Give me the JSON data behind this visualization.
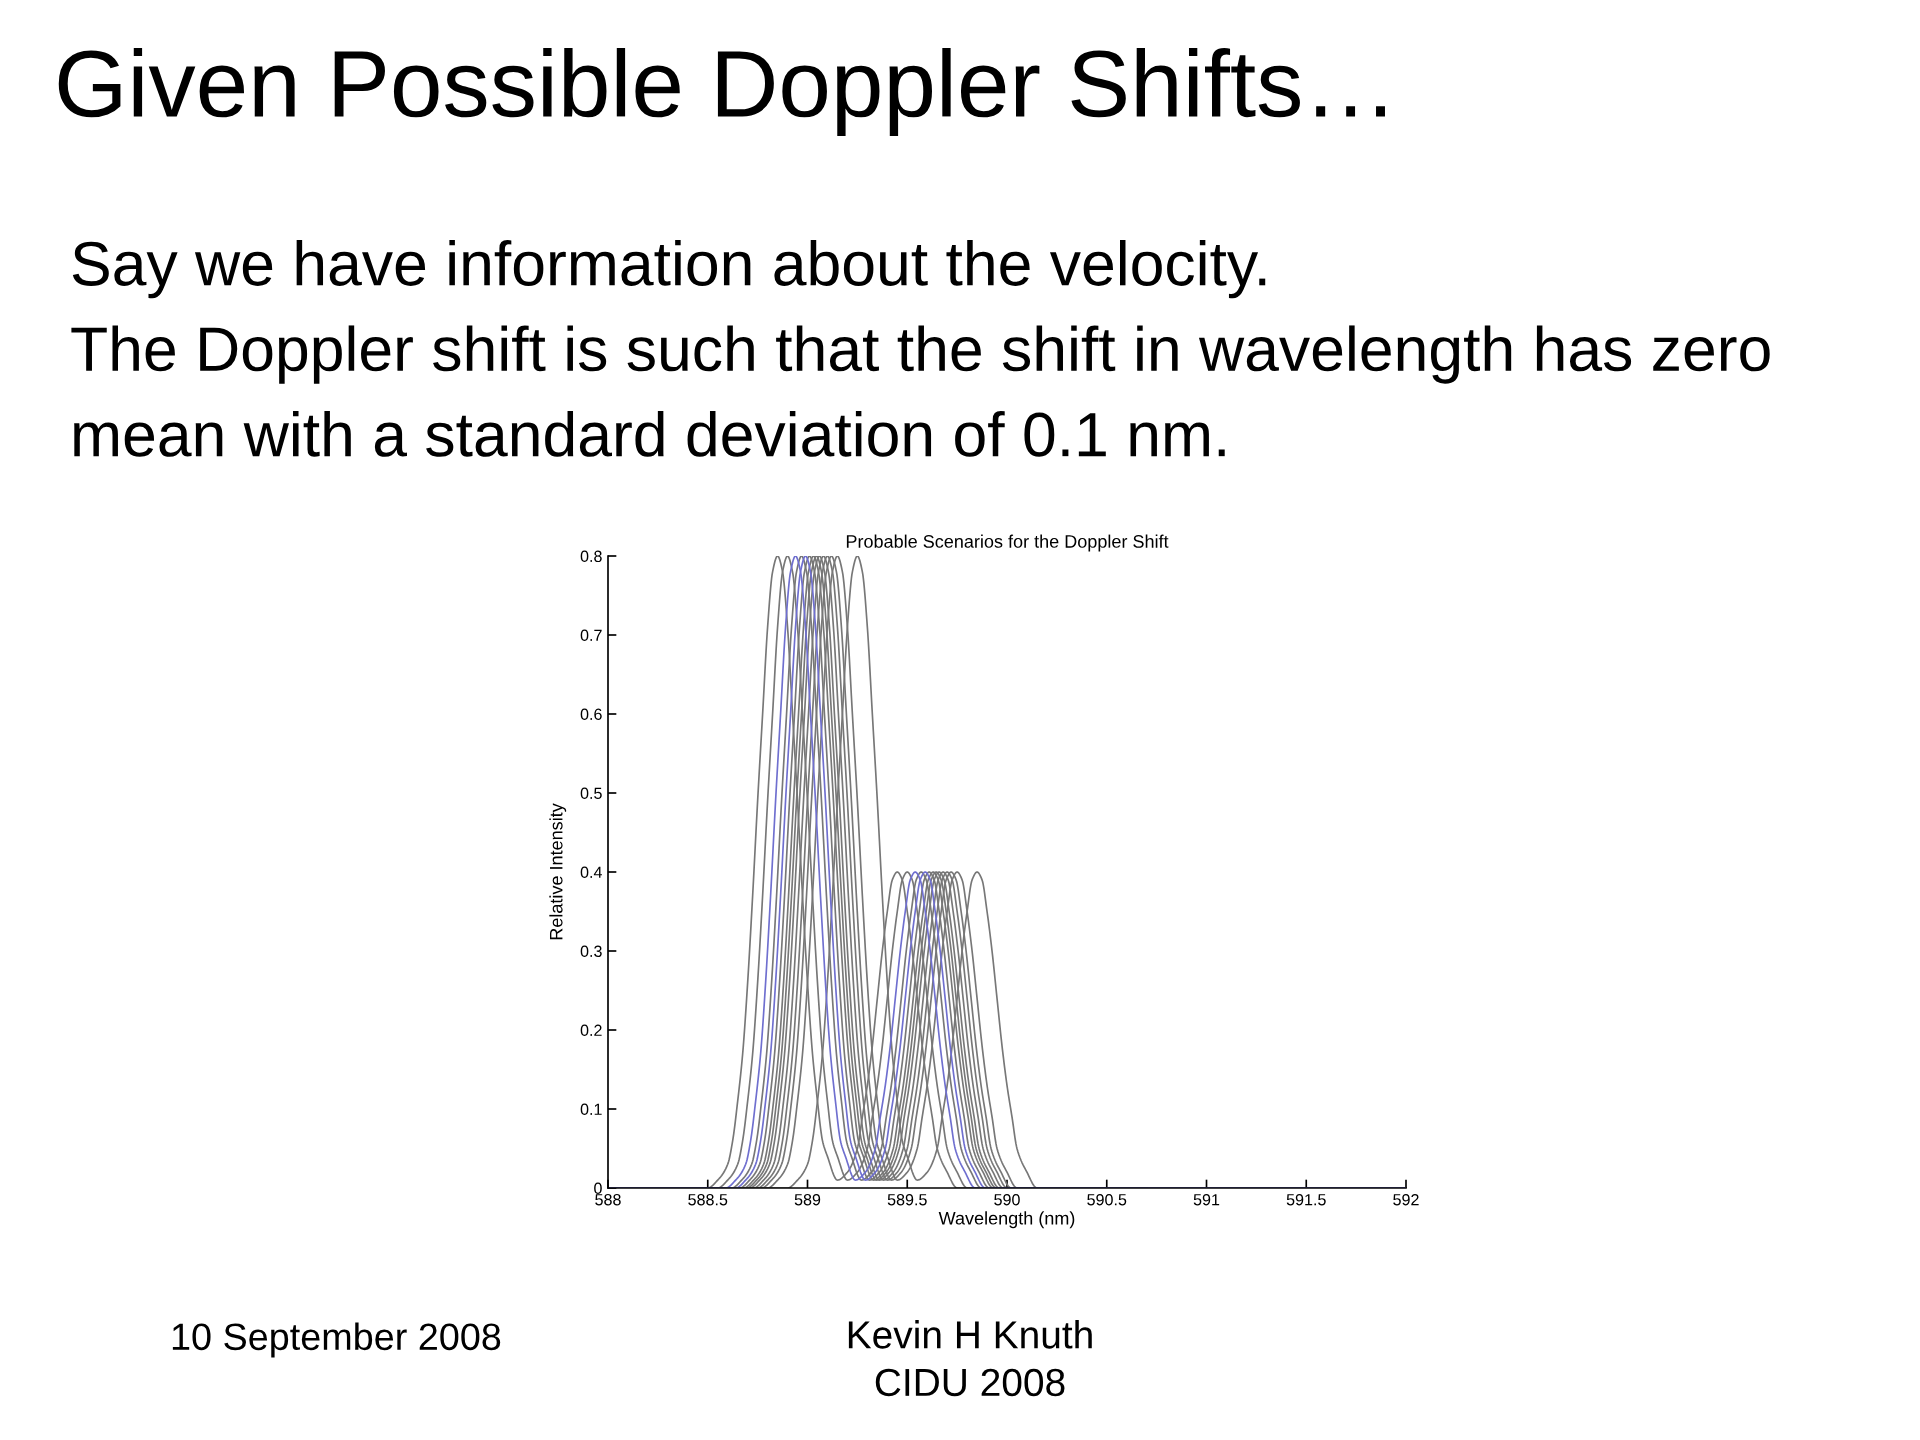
{
  "chart_data": {
    "type": "line",
    "title": "Given Possible Doppler Shifts…",
    "subtitle": "Probable Scenarios for the Doppler Shift",
    "xlabel": "Wavelength (nm)",
    "ylabel": "Relative Intensity",
    "annotations": [
      "Say we have information about the velocity.\nThe Doppler shift is such that the shift in wavelength has zero\nmean with a standard deviation of 0.1 nm.",
      "10 September 2008",
      "Kevin H Knuth\nCIDU 2008"
    ],
    "xlim": [
      588,
      592
    ],
    "xticks": [
      588,
      588.5,
      589,
      589.5,
      590,
      590.5,
      591,
      591.5,
      592
    ],
    "ylim": [
      0,
      0.8
    ],
    "yticks": [
      0,
      0.1,
      0.2,
      0.3,
      0.4,
      0.5,
      0.6,
      0.7,
      0.8
    ],
    "grid": false,
    "marker": "none",
    "line_style": "solid",
    "series": [
      {
        "color": "#777777",
        "x": [
          588,
          588.5,
          588.55,
          588.6,
          588.625,
          588.65,
          588.675,
          588.7,
          588.725,
          588.75,
          588.775,
          588.8,
          588.825,
          588.85,
          588.875,
          588.9,
          588.925,
          588.95,
          588.975,
          589.0,
          589.025,
          589.05,
          589.075,
          589.1,
          589.15,
          589.2,
          589.25,
          589.275,
          589.3,
          589.325,
          589.35,
          589.375,
          589.4,
          589.425,
          589.45,
          589.475,
          589.5,
          589.525,
          589.55,
          589.575,
          589.6,
          589.625,
          589.65,
          589.7,
          589.75,
          590.7
        ],
        "values": [
          0,
          0,
          0.01,
          0.03,
          0.06,
          0.11,
          0.17,
          0.26,
          0.37,
          0.49,
          0.6,
          0.71,
          0.78,
          0.8,
          0.78,
          0.71,
          0.6,
          0.49,
          0.37,
          0.26,
          0.17,
          0.11,
          0.06,
          0.04,
          0.01,
          0.02,
          0.05,
          0.09,
          0.13,
          0.18,
          0.24,
          0.3,
          0.35,
          0.39,
          0.4,
          0.39,
          0.35,
          0.3,
          0.24,
          0.18,
          0.13,
          0.09,
          0.05,
          0.02,
          0,
          0
        ]
      },
      {
        "color": "#777777",
        "x": [
          588,
          588.55,
          588.6,
          588.65,
          588.675,
          588.7,
          588.725,
          588.75,
          588.775,
          588.8,
          588.825,
          588.85,
          588.875,
          588.9,
          588.925,
          588.95,
          588.975,
          589.0,
          589.025,
          589.05,
          589.075,
          589.1,
          589.125,
          589.15,
          589.2,
          589.25,
          589.3,
          589.325,
          589.35,
          589.375,
          589.4,
          589.425,
          589.45,
          589.475,
          589.5,
          589.525,
          589.55,
          589.575,
          589.6,
          589.625,
          589.65,
          589.675,
          589.7,
          589.75,
          589.8,
          590.7
        ],
        "values": [
          0,
          0,
          0.01,
          0.03,
          0.06,
          0.11,
          0.17,
          0.26,
          0.37,
          0.49,
          0.6,
          0.71,
          0.78,
          0.8,
          0.78,
          0.71,
          0.6,
          0.49,
          0.37,
          0.26,
          0.17,
          0.11,
          0.06,
          0.04,
          0.01,
          0.02,
          0.05,
          0.09,
          0.13,
          0.18,
          0.24,
          0.3,
          0.35,
          0.39,
          0.4,
          0.39,
          0.35,
          0.3,
          0.24,
          0.18,
          0.13,
          0.09,
          0.05,
          0.02,
          0,
          0
        ]
      },
      {
        "color": "#777777",
        "x": [
          588,
          588.62,
          588.67,
          588.72,
          588.745,
          588.77,
          588.795,
          588.82,
          588.845,
          588.87,
          588.895,
          588.92,
          588.945,
          588.97,
          588.995,
          589.02,
          589.045,
          589.07,
          589.095,
          589.12,
          589.145,
          589.17,
          589.195,
          589.22,
          589.27,
          589.32,
          589.37,
          589.395,
          589.42,
          589.445,
          589.47,
          589.495,
          589.52,
          589.545,
          589.57,
          589.595,
          589.62,
          589.645,
          589.67,
          589.695,
          589.72,
          589.745,
          589.77,
          589.82,
          589.87,
          590.7
        ],
        "values": [
          0,
          0,
          0.01,
          0.03,
          0.06,
          0.11,
          0.17,
          0.26,
          0.37,
          0.49,
          0.6,
          0.71,
          0.78,
          0.8,
          0.78,
          0.71,
          0.6,
          0.49,
          0.37,
          0.26,
          0.17,
          0.11,
          0.06,
          0.04,
          0.01,
          0.02,
          0.05,
          0.09,
          0.13,
          0.18,
          0.24,
          0.3,
          0.35,
          0.39,
          0.4,
          0.39,
          0.35,
          0.3,
          0.24,
          0.18,
          0.13,
          0.09,
          0.05,
          0.02,
          0,
          0
        ]
      },
      {
        "color": "#777777",
        "x": [
          588,
          588.66,
          588.71,
          588.76,
          588.785,
          588.81,
          588.835,
          588.86,
          588.885,
          588.91,
          588.935,
          588.96,
          588.985,
          589.01,
          589.035,
          589.06,
          589.085,
          589.11,
          589.135,
          589.16,
          589.185,
          589.21,
          589.235,
          589.26,
          589.31,
          589.36,
          589.41,
          589.435,
          589.46,
          589.485,
          589.51,
          589.535,
          589.56,
          589.585,
          589.61,
          589.635,
          589.66,
          589.685,
          589.71,
          589.735,
          589.76,
          589.785,
          589.81,
          589.86,
          589.91,
          590.7
        ],
        "values": [
          0,
          0,
          0.01,
          0.03,
          0.06,
          0.11,
          0.17,
          0.26,
          0.37,
          0.49,
          0.6,
          0.71,
          0.78,
          0.8,
          0.78,
          0.71,
          0.6,
          0.49,
          0.37,
          0.26,
          0.17,
          0.11,
          0.06,
          0.04,
          0.01,
          0.02,
          0.05,
          0.09,
          0.13,
          0.18,
          0.24,
          0.3,
          0.35,
          0.39,
          0.4,
          0.39,
          0.35,
          0.3,
          0.24,
          0.18,
          0.13,
          0.09,
          0.05,
          0.02,
          0,
          0
        ]
      },
      {
        "color": "#777777",
        "x": [
          588,
          588.68,
          588.73,
          588.78,
          588.805,
          588.83,
          588.855,
          588.88,
          588.905,
          588.93,
          588.955,
          588.98,
          589.005,
          589.03,
          589.055,
          589.08,
          589.105,
          589.13,
          589.155,
          589.18,
          589.205,
          589.23,
          589.255,
          589.28,
          589.33,
          589.38,
          589.43,
          589.455,
          589.48,
          589.505,
          589.53,
          589.555,
          589.58,
          589.605,
          589.63,
          589.655,
          589.68,
          589.705,
          589.73,
          589.755,
          589.78,
          589.805,
          589.83,
          589.88,
          589.93,
          590.7
        ],
        "values": [
          0,
          0,
          0.01,
          0.03,
          0.06,
          0.11,
          0.17,
          0.26,
          0.37,
          0.49,
          0.6,
          0.71,
          0.78,
          0.8,
          0.78,
          0.71,
          0.6,
          0.49,
          0.37,
          0.26,
          0.17,
          0.11,
          0.06,
          0.04,
          0.01,
          0.02,
          0.05,
          0.09,
          0.13,
          0.18,
          0.24,
          0.3,
          0.35,
          0.39,
          0.4,
          0.39,
          0.35,
          0.3,
          0.24,
          0.18,
          0.13,
          0.09,
          0.05,
          0.02,
          0,
          0
        ]
      },
      {
        "color": "#777777",
        "x": [
          588,
          588.695,
          588.745,
          588.795,
          588.82,
          588.845,
          588.87,
          588.895,
          588.92,
          588.945,
          588.97,
          588.995,
          589.02,
          589.045,
          589.07,
          589.095,
          589.12,
          589.145,
          589.17,
          589.195,
          589.22,
          589.245,
          589.27,
          589.295,
          589.345,
          589.395,
          589.445,
          589.47,
          589.495,
          589.52,
          589.545,
          589.57,
          589.595,
          589.62,
          589.645,
          589.67,
          589.695,
          589.72,
          589.745,
          589.77,
          589.795,
          589.82,
          589.845,
          589.895,
          589.945,
          590.7
        ],
        "values": [
          0,
          0,
          0.01,
          0.03,
          0.06,
          0.11,
          0.17,
          0.26,
          0.37,
          0.49,
          0.6,
          0.71,
          0.78,
          0.8,
          0.78,
          0.71,
          0.6,
          0.49,
          0.37,
          0.26,
          0.17,
          0.11,
          0.06,
          0.04,
          0.01,
          0.02,
          0.05,
          0.09,
          0.13,
          0.18,
          0.24,
          0.3,
          0.35,
          0.39,
          0.4,
          0.39,
          0.35,
          0.3,
          0.24,
          0.18,
          0.13,
          0.09,
          0.05,
          0.02,
          0,
          0
        ]
      },
      {
        "color": "#777777",
        "x": [
          588,
          588.71,
          588.76,
          588.81,
          588.835,
          588.86,
          588.885,
          588.91,
          588.935,
          588.96,
          588.985,
          589.01,
          589.035,
          589.06,
          589.085,
          589.11,
          589.135,
          589.16,
          589.185,
          589.21,
          589.235,
          589.26,
          589.285,
          589.31,
          589.36,
          589.41,
          589.46,
          589.485,
          589.51,
          589.535,
          589.56,
          589.585,
          589.61,
          589.635,
          589.66,
          589.685,
          589.71,
          589.735,
          589.76,
          589.785,
          589.81,
          589.835,
          589.86,
          589.91,
          589.96,
          590.7
        ],
        "values": [
          0,
          0,
          0.01,
          0.03,
          0.06,
          0.11,
          0.17,
          0.26,
          0.37,
          0.49,
          0.6,
          0.71,
          0.78,
          0.8,
          0.78,
          0.71,
          0.6,
          0.49,
          0.37,
          0.26,
          0.17,
          0.11,
          0.06,
          0.04,
          0.01,
          0.02,
          0.05,
          0.09,
          0.13,
          0.18,
          0.24,
          0.3,
          0.35,
          0.39,
          0.4,
          0.39,
          0.35,
          0.3,
          0.24,
          0.18,
          0.13,
          0.09,
          0.05,
          0.02,
          0,
          0
        ]
      },
      {
        "color": "#777777",
        "x": [
          588,
          588.73,
          588.78,
          588.83,
          588.855,
          588.88,
          588.905,
          588.93,
          588.955,
          588.98,
          589.005,
          589.03,
          589.055,
          589.08,
          589.105,
          589.13,
          589.155,
          589.18,
          589.205,
          589.23,
          589.255,
          589.28,
          589.305,
          589.33,
          589.38,
          589.43,
          589.48,
          589.505,
          589.53,
          589.555,
          589.58,
          589.605,
          589.63,
          589.655,
          589.68,
          589.705,
          589.73,
          589.755,
          589.78,
          589.805,
          589.83,
          589.855,
          589.88,
          589.93,
          589.98,
          590.7
        ],
        "values": [
          0,
          0,
          0.01,
          0.03,
          0.06,
          0.11,
          0.17,
          0.26,
          0.37,
          0.49,
          0.6,
          0.71,
          0.78,
          0.8,
          0.78,
          0.71,
          0.6,
          0.49,
          0.37,
          0.26,
          0.17,
          0.11,
          0.06,
          0.04,
          0.01,
          0.02,
          0.05,
          0.09,
          0.13,
          0.18,
          0.24,
          0.3,
          0.35,
          0.39,
          0.4,
          0.39,
          0.35,
          0.3,
          0.24,
          0.18,
          0.13,
          0.09,
          0.05,
          0.02,
          0,
          0
        ]
      },
      {
        "color": "#777777",
        "x": [
          588,
          588.75,
          588.8,
          588.85,
          588.875,
          588.9,
          588.925,
          588.95,
          588.975,
          589.0,
          589.025,
          589.05,
          589.075,
          589.1,
          589.125,
          589.15,
          589.175,
          589.2,
          589.225,
          589.25,
          589.275,
          589.3,
          589.325,
          589.35,
          589.4,
          589.45,
          589.5,
          589.525,
          589.55,
          589.575,
          589.6,
          589.625,
          589.65,
          589.675,
          589.7,
          589.725,
          589.75,
          589.775,
          589.8,
          589.825,
          589.85,
          589.875,
          589.9,
          589.95,
          590.0,
          590.7
        ],
        "values": [
          0,
          0,
          0.01,
          0.03,
          0.06,
          0.11,
          0.17,
          0.26,
          0.37,
          0.49,
          0.6,
          0.71,
          0.78,
          0.8,
          0.78,
          0.71,
          0.6,
          0.49,
          0.37,
          0.26,
          0.17,
          0.11,
          0.06,
          0.04,
          0.01,
          0.02,
          0.05,
          0.09,
          0.13,
          0.18,
          0.24,
          0.3,
          0.35,
          0.39,
          0.4,
          0.39,
          0.35,
          0.3,
          0.24,
          0.18,
          0.13,
          0.09,
          0.05,
          0.02,
          0,
          0
        ]
      },
      {
        "color": "#777777",
        "x": [
          588,
          588.77,
          588.82,
          588.87,
          588.895,
          588.92,
          588.945,
          588.97,
          588.995,
          589.02,
          589.045,
          589.07,
          589.095,
          589.12,
          589.145,
          589.17,
          589.195,
          589.22,
          589.245,
          589.27,
          589.295,
          589.32,
          589.345,
          589.37,
          589.42,
          589.47,
          589.52,
          589.545,
          589.57,
          589.595,
          589.62,
          589.645,
          589.67,
          589.695,
          589.72,
          589.745,
          589.77,
          589.795,
          589.82,
          589.845,
          589.87,
          589.895,
          589.92,
          589.97,
          590.02,
          590.7
        ],
        "values": [
          0,
          0,
          0.01,
          0.03,
          0.06,
          0.11,
          0.17,
          0.26,
          0.37,
          0.49,
          0.6,
          0.71,
          0.78,
          0.8,
          0.78,
          0.71,
          0.6,
          0.49,
          0.37,
          0.26,
          0.17,
          0.11,
          0.06,
          0.04,
          0.01,
          0.02,
          0.05,
          0.09,
          0.13,
          0.18,
          0.24,
          0.3,
          0.35,
          0.39,
          0.4,
          0.39,
          0.35,
          0.3,
          0.24,
          0.18,
          0.13,
          0.09,
          0.05,
          0.02,
          0,
          0
        ]
      },
      {
        "color": "#777777",
        "x": [
          588,
          588.8,
          588.85,
          588.9,
          588.925,
          588.95,
          588.975,
          589.0,
          589.025,
          589.05,
          589.075,
          589.1,
          589.125,
          589.15,
          589.175,
          589.2,
          589.225,
          589.25,
          589.275,
          589.3,
          589.325,
          589.35,
          589.375,
          589.4,
          589.45,
          589.5,
          589.55,
          589.575,
          589.6,
          589.625,
          589.65,
          589.675,
          589.7,
          589.725,
          589.75,
          589.775,
          589.8,
          589.825,
          589.85,
          589.875,
          589.9,
          589.925,
          589.95,
          590.0,
          590.05,
          590.7
        ],
        "values": [
          0,
          0,
          0.01,
          0.03,
          0.06,
          0.11,
          0.17,
          0.26,
          0.37,
          0.49,
          0.6,
          0.71,
          0.78,
          0.8,
          0.78,
          0.71,
          0.6,
          0.49,
          0.37,
          0.26,
          0.17,
          0.11,
          0.06,
          0.04,
          0.01,
          0.02,
          0.05,
          0.09,
          0.13,
          0.18,
          0.24,
          0.3,
          0.35,
          0.39,
          0.4,
          0.39,
          0.35,
          0.3,
          0.24,
          0.18,
          0.13,
          0.09,
          0.05,
          0.02,
          0,
          0
        ]
      },
      {
        "color": "#777777",
        "x": [
          588,
          588.9,
          588.95,
          589.0,
          589.025,
          589.05,
          589.075,
          589.1,
          589.125,
          589.15,
          589.175,
          589.2,
          589.225,
          589.25,
          589.275,
          589.3,
          589.325,
          589.35,
          589.375,
          589.4,
          589.425,
          589.45,
          589.475,
          589.5,
          589.55,
          589.6,
          589.65,
          589.675,
          589.7,
          589.725,
          589.75,
          589.775,
          589.8,
          589.825,
          589.85,
          589.875,
          589.9,
          589.925,
          589.95,
          589.975,
          590.0,
          590.025,
          590.05,
          590.1,
          590.15,
          590.7
        ],
        "values": [
          0,
          0,
          0.01,
          0.03,
          0.06,
          0.11,
          0.17,
          0.26,
          0.37,
          0.49,
          0.6,
          0.71,
          0.78,
          0.8,
          0.78,
          0.71,
          0.6,
          0.49,
          0.37,
          0.26,
          0.17,
          0.11,
          0.06,
          0.04,
          0.01,
          0.02,
          0.05,
          0.09,
          0.13,
          0.18,
          0.24,
          0.3,
          0.35,
          0.39,
          0.4,
          0.39,
          0.35,
          0.3,
          0.24,
          0.18,
          0.13,
          0.09,
          0.05,
          0.02,
          0,
          0
        ]
      },
      {
        "color": "#6f6fcf",
        "x": [
          588,
          588.59,
          588.64,
          588.69,
          588.715,
          588.74,
          588.765,
          588.79,
          588.815,
          588.84,
          588.865,
          588.89,
          588.915,
          588.94,
          588.965,
          588.99,
          589.015,
          589.04,
          589.065,
          589.09,
          589.115,
          589.14,
          589.165,
          589.19,
          589.24,
          589.29,
          589.34,
          589.365,
          589.39,
          589.415,
          589.44,
          589.465,
          589.49,
          589.515,
          589.54,
          589.565,
          589.59,
          589.615,
          589.64,
          589.665,
          589.69,
          589.715,
          589.74,
          589.79,
          589.84,
          592
        ],
        "values": [
          0,
          0,
          0.01,
          0.03,
          0.06,
          0.11,
          0.17,
          0.26,
          0.37,
          0.49,
          0.6,
          0.71,
          0.78,
          0.8,
          0.78,
          0.71,
          0.6,
          0.49,
          0.37,
          0.26,
          0.17,
          0.11,
          0.06,
          0.04,
          0.01,
          0.02,
          0.05,
          0.09,
          0.13,
          0.18,
          0.24,
          0.3,
          0.35,
          0.39,
          0.4,
          0.39,
          0.35,
          0.3,
          0.24,
          0.18,
          0.13,
          0.09,
          0.05,
          0.02,
          0,
          0
        ]
      },
      {
        "color": "#6f6fcf",
        "x": [
          588,
          588.64,
          588.69,
          588.74,
          588.765,
          588.79,
          588.815,
          588.84,
          588.865,
          588.89,
          588.915,
          588.94,
          588.965,
          588.99,
          589.015,
          589.04,
          589.065,
          589.09,
          589.115,
          589.14,
          589.165,
          589.19,
          589.215,
          589.24,
          589.29,
          589.34,
          589.39,
          589.415,
          589.44,
          589.465,
          589.49,
          589.515,
          589.54,
          589.565,
          589.59,
          589.615,
          589.64,
          589.665,
          589.69,
          589.715,
          589.74,
          589.765,
          589.79,
          589.84,
          589.89,
          592
        ],
        "values": [
          0,
          0,
          0.01,
          0.03,
          0.06,
          0.11,
          0.17,
          0.26,
          0.37,
          0.49,
          0.6,
          0.71,
          0.78,
          0.8,
          0.78,
          0.71,
          0.6,
          0.49,
          0.37,
          0.26,
          0.17,
          0.11,
          0.06,
          0.04,
          0.01,
          0.02,
          0.05,
          0.09,
          0.13,
          0.18,
          0.24,
          0.3,
          0.35,
          0.39,
          0.4,
          0.39,
          0.35,
          0.3,
          0.24,
          0.18,
          0.13,
          0.09,
          0.05,
          0.02,
          0,
          0
        ]
      }
    ]
  }
}
